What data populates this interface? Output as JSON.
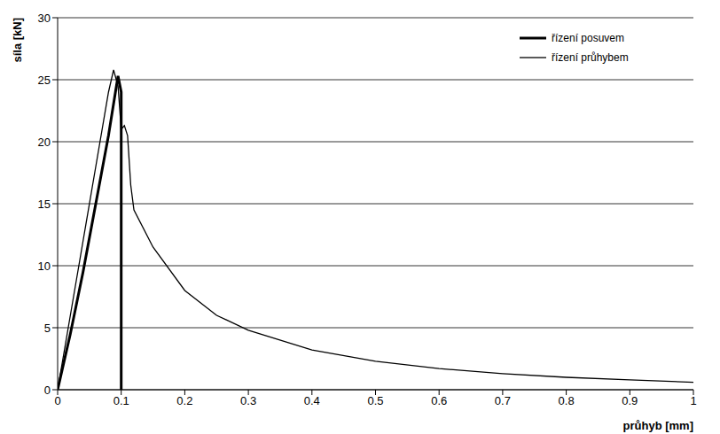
{
  "chart_data": {
    "type": "line",
    "x_label": "průhyb [mm]",
    "y_label": "síla [kN]",
    "xlim": [
      0,
      1
    ],
    "xticks": [
      0,
      0.1,
      0.2,
      0.3,
      0.4,
      0.5,
      0.6,
      0.7,
      0.8,
      0.9,
      1
    ],
    "ylim": [
      0,
      30
    ],
    "yticks": [
      0,
      5,
      10,
      15,
      20,
      25,
      30
    ],
    "grid": true,
    "legend": "upper right",
    "series": [
      {
        "name": "řízení posuvem",
        "color": "#000000",
        "line_style": "solid",
        "x": [
          0,
          0.02,
          0.04,
          0.06,
          0.08,
          0.095,
          0.1,
          0.1
        ],
        "values": [
          0,
          4.5,
          9.5,
          15,
          20.5,
          25.3,
          24,
          0
        ]
      },
      {
        "name": "řízení průhybem",
        "color": "#000000",
        "line_style": "solid",
        "x": [
          0,
          0.02,
          0.04,
          0.06,
          0.08,
          0.088,
          0.095,
          0.1,
          0.105,
          0.11,
          0.115,
          0.12,
          0.15,
          0.2,
          0.25,
          0.3,
          0.4,
          0.5,
          0.6,
          0.7,
          0.8,
          0.9,
          1.0
        ],
        "values": [
          0,
          6,
          12,
          18,
          24,
          25.8,
          24.5,
          21,
          21.3,
          20.5,
          16.5,
          14.5,
          11.5,
          8,
          6,
          4.8,
          3.2,
          2.3,
          1.7,
          1.3,
          1,
          0.8,
          0.6
        ]
      }
    ]
  }
}
